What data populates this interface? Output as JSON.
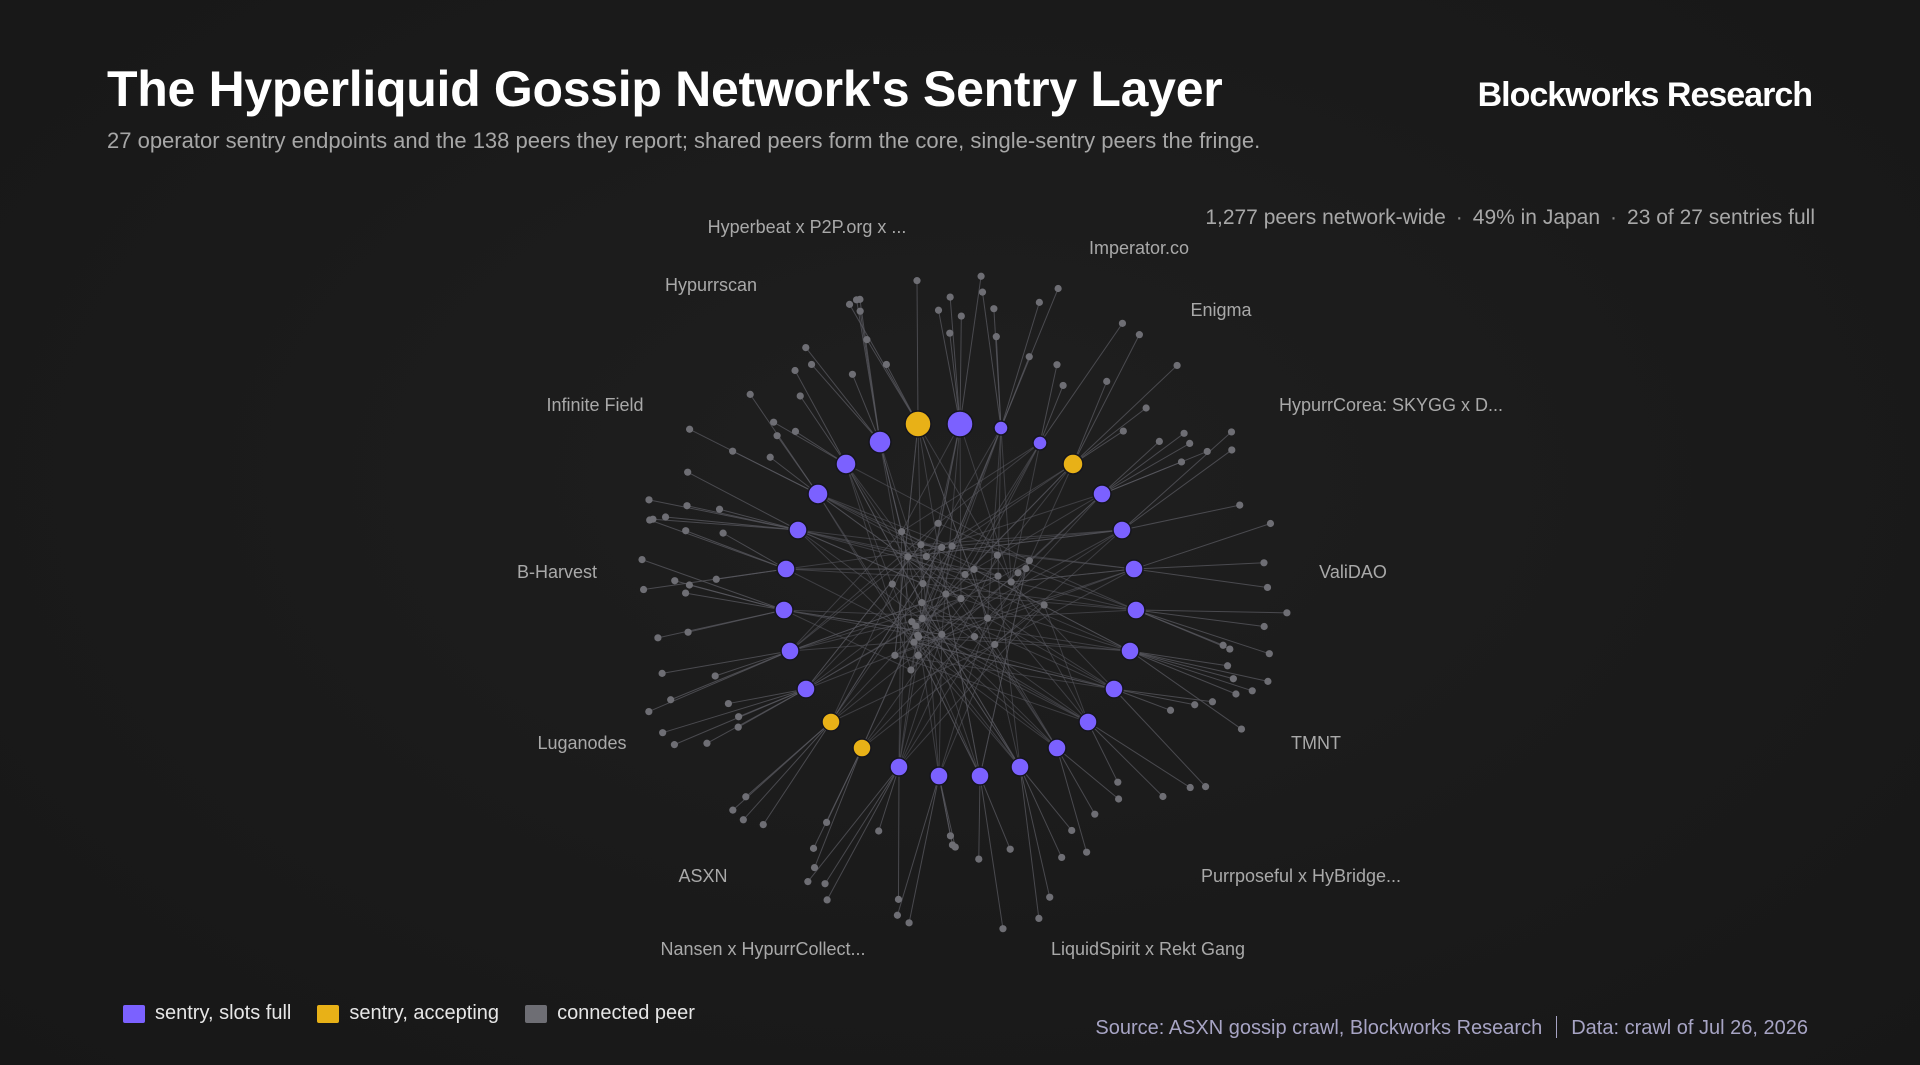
{
  "header": {
    "title": "The Hyperliquid Gossip Network's Sentry Layer",
    "subtitle": "27 operator sentry endpoints and the 138 peers they report; shared peers form the core, single-sentry peers the fringe.",
    "brand": "Blockworks Research"
  },
  "stats": {
    "peers": "1,277 peers network-wide",
    "japan": "49% in Japan",
    "sentries": "23 of 27 sentries full",
    "separator": "·"
  },
  "colors": {
    "sentry_full": "#7b61ff",
    "sentry_accepting": "#e8b117",
    "peer": "#6e6e74",
    "edge": "#5a5a60"
  },
  "operator_labels": [
    "Hyperbeat x P2P.org x ...",
    "Imperator.co",
    "Hypurrscan",
    "Enigma",
    "Infinite Field",
    "HypurrCorea: SKYGG x D...",
    "B-Harvest",
    "ValiDAO",
    "Luganodes",
    "TMNT",
    "ASXN",
    "Purrposeful x HyBridge...",
    "Nansen x HypurrCollect...",
    "LiquidSpirit x Rekt Gang"
  ],
  "legend": {
    "full": "sentry, slots full",
    "accepting": "sentry, accepting",
    "peer": "connected peer"
  },
  "footer": {
    "source": "Source: ASXN gossip crawl, Blockworks Research",
    "data": "Data: crawl of Jul 26, 2026"
  }
}
